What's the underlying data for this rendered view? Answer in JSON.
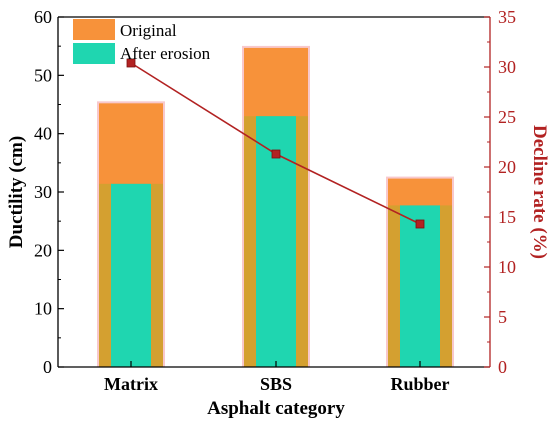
{
  "chart_data": {
    "type": "bar",
    "title": "",
    "xlabel": "Asphalt category",
    "ylabel": "Ductility (cm)",
    "y2label": "Decline rate (%)",
    "categories": [
      "Matrix",
      "SBS",
      "Rubber"
    ],
    "ylim": [
      0,
      60
    ],
    "y_ticks": [
      "0",
      "10",
      "20",
      "30",
      "40",
      "50",
      "60"
    ],
    "y2lim": [
      0,
      35
    ],
    "y2_ticks": [
      "0",
      "5",
      "10",
      "15",
      "20",
      "25",
      "30",
      "35"
    ],
    "series": [
      {
        "name": "Original",
        "type": "bar",
        "axis": "left",
        "values": [
          45.2,
          54.7,
          32.3
        ]
      },
      {
        "name": "After erosion",
        "type": "bar",
        "axis": "left",
        "values": [
          31.4,
          43.0,
          27.7
        ]
      },
      {
        "type": "line",
        "axis": "right",
        "values": [
          30.4,
          21.3,
          14.3
        ]
      }
    ],
    "legend_position": "top-left",
    "grid": false,
    "colors": {
      "original": "#f7923a",
      "after_erosion": "#1fd6b0",
      "bar_frame": "#d4a030",
      "bar_halo": "#f8c8cc",
      "decline_line": "#b22222",
      "right_axis": "#b22222",
      "axis": "#000000"
    }
  }
}
